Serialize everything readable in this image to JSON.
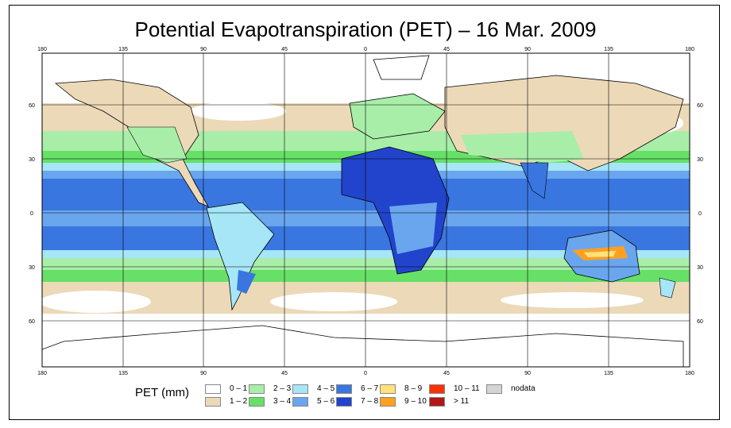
{
  "title": "Potential Evapotranspiration (PET) – 16 Mar. 2009",
  "axes": {
    "lon_labels": [
      "180",
      "135",
      "90",
      "45",
      "0",
      "45",
      "90",
      "135",
      "180"
    ],
    "lat_labels_left": [
      "60",
      "30",
      "0",
      "30",
      "60"
    ],
    "lat_labels_right": [
      "60",
      "30",
      "0",
      "30",
      "60"
    ]
  },
  "legend": {
    "title": "PET (mm)",
    "items": [
      {
        "label": "0 – 1",
        "color": "#ffffff"
      },
      {
        "label": "1 – 2",
        "color": "#ecd9b8"
      },
      {
        "label": "2 – 3",
        "color": "#a8eea8"
      },
      {
        "label": "3 – 4",
        "color": "#66e066"
      },
      {
        "label": "4 – 5",
        "color": "#a6e6f6"
      },
      {
        "label": "5 – 6",
        "color": "#6aa6ee"
      },
      {
        "label": "6 – 7",
        "color": "#3a76e0"
      },
      {
        "label": "7 – 8",
        "color": "#2244cc"
      },
      {
        "label": "8 – 9",
        "color": "#ffe27a"
      },
      {
        "label": "9 – 10",
        "color": "#ffa020"
      },
      {
        "label": "10 – 11",
        "color": "#ff3000"
      },
      {
        "label": "> 11",
        "color": "#b01818"
      },
      {
        "label": "nodata",
        "color": "#d4d4d4"
      }
    ]
  }
}
